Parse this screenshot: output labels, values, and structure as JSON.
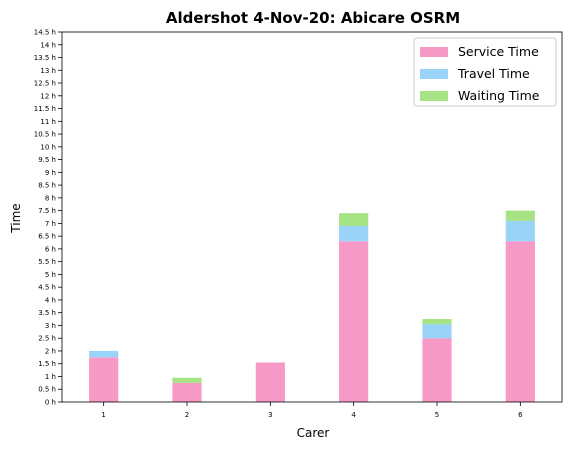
{
  "chart_data": {
    "type": "bar",
    "stacked": true,
    "title": "Aldershot 4-Nov-20: Abicare OSRM",
    "xlabel": "Carer",
    "ylabel": "Time",
    "ylim": [
      0,
      14.5
    ],
    "y_tick_step": 0.5,
    "y_tick_suffix": " h",
    "grid": false,
    "legend_position": "top-right",
    "categories": [
      "1",
      "2",
      "3",
      "4",
      "5",
      "6"
    ],
    "series": [
      {
        "name": "Service Time",
        "color": "#f799c6",
        "values": [
          1.75,
          0.75,
          1.55,
          6.3,
          2.5,
          6.3
        ]
      },
      {
        "name": "Travel Time",
        "color": "#99d4f8",
        "values": [
          0.25,
          0.0,
          0.0,
          0.6,
          0.55,
          0.8
        ]
      },
      {
        "name": "Waiting Time",
        "color": "#a6e382",
        "values": [
          0.0,
          0.2,
          0.0,
          0.5,
          0.2,
          0.4
        ]
      }
    ]
  }
}
